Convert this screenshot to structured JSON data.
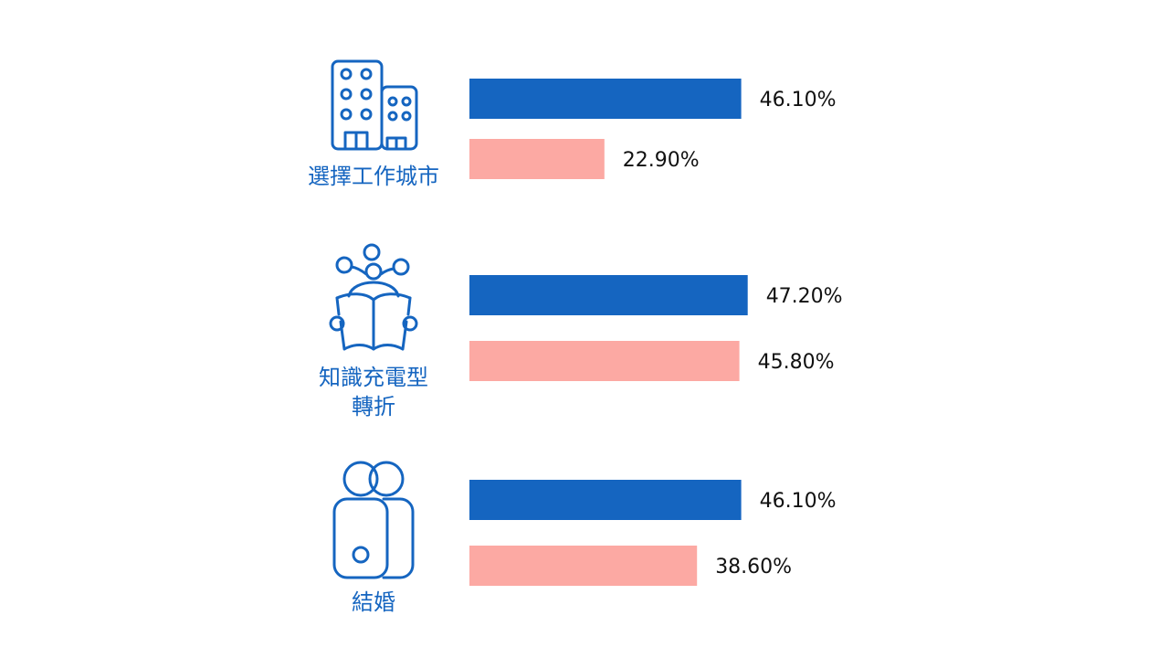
{
  "chart_data": {
    "type": "bar",
    "orientation": "horizontal",
    "categories": [
      "選擇工作城市",
      "知識充電型轉折",
      "結婚"
    ],
    "category_lines": [
      [
        "選擇工作城市"
      ],
      [
        "知識充電型",
        "轉折"
      ],
      [
        "結婚"
      ]
    ],
    "category_icons": [
      "office-building-icon",
      "person-reading-book-icon",
      "two-people-icon"
    ],
    "series": [
      {
        "values": [
          46.1,
          47.2,
          46.1
        ],
        "labels": [
          "46.10%",
          "47.20%",
          "46.10%"
        ],
        "color": "#1565c0"
      },
      {
        "values": [
          22.9,
          45.8,
          38.6
        ],
        "labels": [
          "22.90%",
          "45.80%",
          "38.60%"
        ],
        "color": "#fca9a3"
      }
    ],
    "title": "",
    "xlabel": "",
    "ylabel": "",
    "xlim": [
      0,
      100
    ],
    "grid": false,
    "legend": "none"
  }
}
